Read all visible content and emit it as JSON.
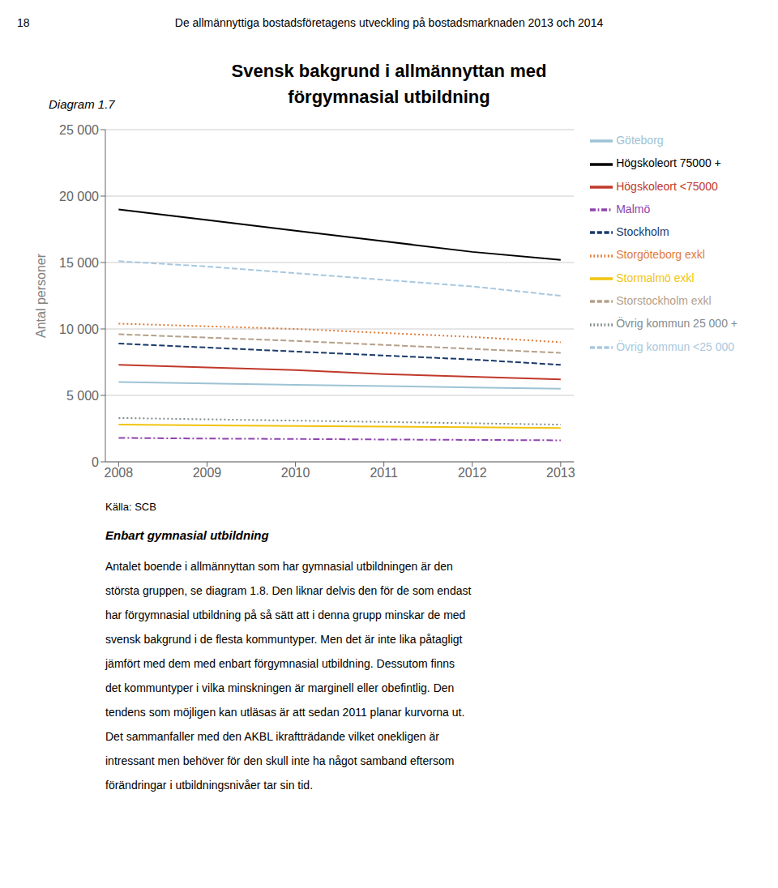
{
  "chart_data": {
    "type": "line",
    "title": "Svensk bakgrund i allmännyttan med",
    "subtitle": "förgymnasial utbildning",
    "y_label": "Antal personer",
    "annotations": [
      "18",
      "De allmännyttiga bostadsföretagens utveckling på bostadsmarknaden 2013 och 2014",
      "Diagram 1.7",
      "Källa: SCB",
      "Enbart gymnasial utbildning",
      "Antalet boende i allmännyttan som har gymnasial utbildningen är den",
      "största gruppen, se diagram 1.8. Den liknar delvis den för de som endast",
      "har förgymnasial utbildning på så sätt att i denna grupp minskar de med",
      "svensk bakgrund i de flesta kommuntyper. Men det är inte lika påtagligt",
      "jämfört med dem med enbart förgymnasial utbildning. Dessutom finns",
      "det kommuntyper i vilka minskningen är marginell eller obefintlig. Den",
      "tendens som möjligen kan utläsas är att sedan 2011 planar kurvorna ut.",
      "Det sammanfaller med den AKBL ikraftträdande vilket onekligen är",
      "intressant men behöver för den skull inte ha något samband eftersom",
      "förändringar i utbildningsnivåer tar sin tid."
    ],
    "x": [
      2008,
      2009,
      2010,
      2011,
      2012,
      2013
    ],
    "xlim": [
      2007.85,
      2013.15
    ],
    "xticks": [
      2008,
      2009,
      2010,
      2011,
      2012,
      2013
    ],
    "ylim": [
      0,
      25000
    ],
    "yticks": [
      0,
      {
        "value": 5000,
        "label": "5 000"
      },
      {
        "value": 10000,
        "label": "10 000"
      },
      {
        "value": 15000,
        "label": "15 000"
      },
      {
        "value": 20000,
        "label": "20 000"
      },
      {
        "value": 25000,
        "label": "25 000"
      }
    ],
    "grid": true,
    "legend": "right",
    "series": [
      {
        "name": "Göteborg",
        "color": "#9dc3d4",
        "line_style": "solid",
        "values": [
          6000,
          5900,
          5800,
          5700,
          5600,
          5500
        ]
      },
      {
        "name": "Högskoleort <75000",
        "color": "#c0392b",
        "line_style": "solid",
        "values": [
          7300,
          7100,
          6900,
          6600,
          6400,
          6200
        ]
      },
      {
        "name": "Högskoleort 75000 +",
        "color": "#000000",
        "line_style": "solid",
        "values": [
          19000,
          18200,
          17400,
          16600,
          15800,
          15200
        ]
      },
      {
        "name": "Malmö",
        "color": "#8e44ad",
        "line_style": "dashdot",
        "values": [
          1800,
          1750,
          1720,
          1680,
          1650,
          1620
        ]
      },
      {
        "name": "Stockholm",
        "color": "#1a3a6b",
        "line_style": "dashed",
        "values": [
          8900,
          8600,
          8300,
          8000,
          7700,
          7300
        ]
      },
      {
        "name": "Storgöteborg exkl",
        "color": "#e07b39",
        "line_style": "dotted",
        "values": [
          10400,
          10200,
          10000,
          9700,
          9400,
          9000
        ]
      },
      {
        "name": "Stormalmö exkl",
        "color": "#f1c40f",
        "line_style": "solid",
        "values": [
          2800,
          2750,
          2700,
          2650,
          2600,
          2550
        ]
      },
      {
        "name": "Storstockholm exkl",
        "color": "#b5a08a",
        "line_style": "dashed",
        "values": [
          9600,
          9350,
          9100,
          8800,
          8500,
          8200
        ]
      },
      {
        "name": "Övrig kommun <25 000",
        "color": "#a8c8e0",
        "line_style": "dashed",
        "values": [
          15100,
          14700,
          14200,
          13700,
          13200,
          12500
        ]
      },
      {
        "name": "Övrig kommun 25 000 +",
        "color": "#7f8c8d",
        "line_style": "dotted",
        "values": [
          3300,
          3200,
          3100,
          3000,
          2900,
          2800
        ]
      }
    ]
  }
}
